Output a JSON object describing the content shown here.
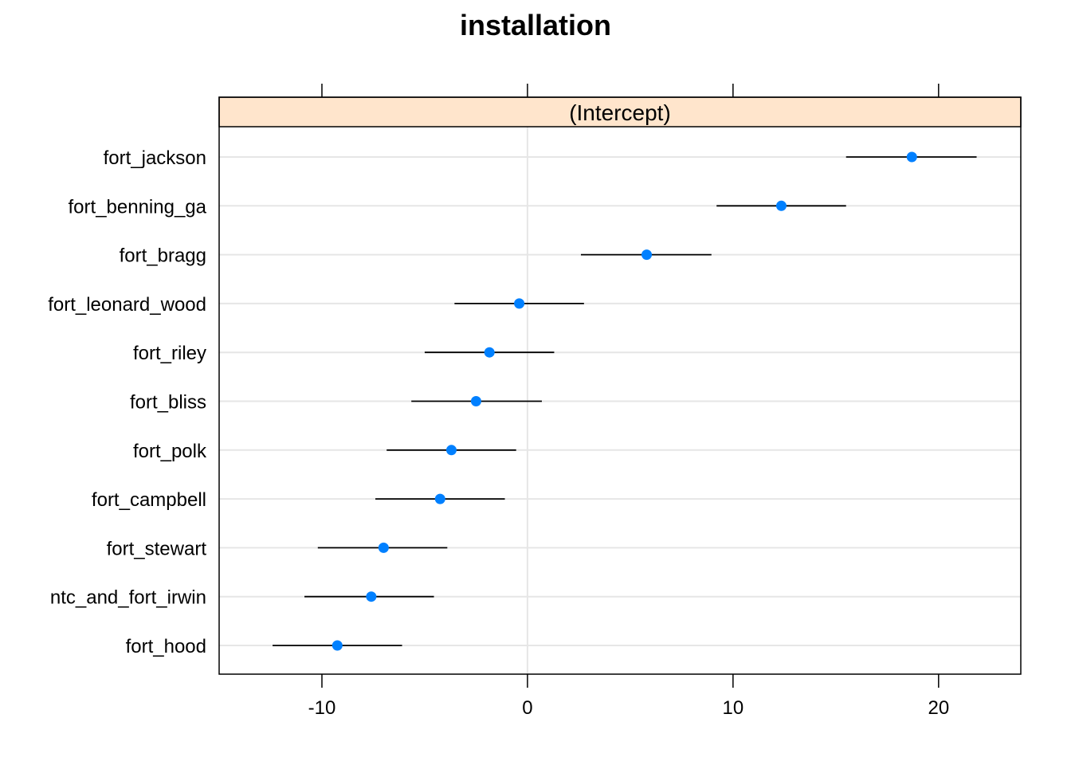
{
  "chart_data": {
    "type": "dotplot",
    "title": "installation",
    "panel_strip": "(Intercept)",
    "xlim": [
      -15,
      24
    ],
    "x_ticks": [
      -10,
      0,
      10,
      20
    ],
    "grid": true,
    "categories": [
      "fort_jackson",
      "fort_benning_ga",
      "fort_bragg",
      "fort_leonard_wood",
      "fort_riley",
      "fort_bliss",
      "fort_polk",
      "fort_campbell",
      "fort_stewart",
      "ntc_and_fort_irwin",
      "fort_hood"
    ],
    "estimates": [
      18.7,
      12.35,
      5.8,
      -0.4,
      -1.85,
      -2.5,
      -3.7,
      -4.25,
      -7.0,
      -7.6,
      -9.25
    ],
    "lower": [
      15.5,
      9.2,
      2.6,
      -3.55,
      -5.0,
      -5.65,
      -6.85,
      -7.4,
      -10.2,
      -10.85,
      -12.4
    ],
    "upper": [
      21.85,
      15.5,
      8.95,
      2.75,
      1.3,
      0.7,
      -0.55,
      -1.1,
      -3.9,
      -4.55,
      -6.1
    ],
    "point_color": "#0080ff",
    "strip_color": "#ffe5cc",
    "grid_color": "#e6e6e6"
  }
}
